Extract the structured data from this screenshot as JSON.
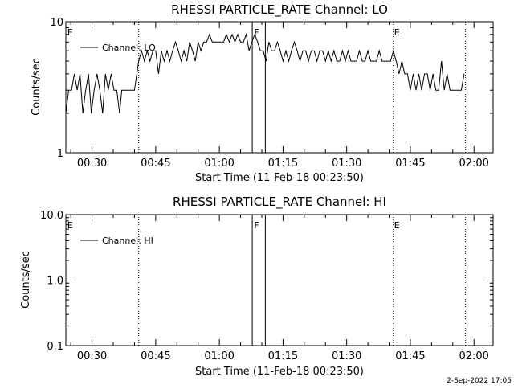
{
  "chart_data": [
    {
      "type": "line",
      "title": "RHESSI PARTICLE_RATE Channel: LO",
      "xlabel": "Start Time (11-Feb-18 00:23:50)",
      "ylabel": "Counts/sec",
      "y_scale": "log",
      "ylim": [
        1,
        10
      ],
      "y_ticks": [
        1,
        10
      ],
      "y_tick_labels": [
        "1",
        "10"
      ],
      "x_range": [
        "00:23:50",
        "02:04:30"
      ],
      "x_ticks": [
        "00:30",
        "00:45",
        "01:00",
        "01:15",
        "01:30",
        "01:45",
        "02:00"
      ],
      "legend": "top-left",
      "series": [
        {
          "name": "Channel: LO",
          "color": "#000000",
          "x": [
            "00:23:50",
            "00:24:30",
            "00:25:10",
            "00:25:50",
            "00:26:30",
            "00:27:10",
            "00:27:50",
            "00:28:30",
            "00:29:10",
            "00:29:50",
            "00:30:30",
            "00:31:10",
            "00:31:50",
            "00:32:30",
            "00:33:10",
            "00:33:50",
            "00:34:30",
            "00:35:10",
            "00:35:50",
            "00:36:30",
            "00:37:00",
            "00:40:00",
            "00:41:00",
            "00:41:40",
            "00:42:20",
            "00:43:00",
            "00:43:40",
            "00:44:20",
            "00:45:00",
            "00:45:40",
            "00:46:20",
            "00:47:00",
            "00:47:40",
            "00:48:20",
            "00:49:00",
            "00:49:40",
            "00:50:20",
            "00:51:00",
            "00:51:40",
            "00:52:20",
            "00:53:00",
            "00:53:40",
            "00:54:20",
            "00:55:00",
            "00:55:40",
            "00:56:20",
            "00:57:00",
            "00:57:40",
            "00:58:20",
            "00:59:00",
            "00:59:40",
            "01:00:20",
            "01:01:00",
            "01:01:40",
            "01:02:20",
            "01:03:00",
            "01:03:40",
            "01:04:20",
            "01:05:00",
            "01:05:40",
            "01:06:20",
            "01:07:00",
            "01:07:40",
            "01:08:20",
            "01:09:00",
            "01:09:40",
            "01:10:20",
            "01:11:00",
            "01:11:40",
            "01:12:20",
            "01:13:00",
            "01:13:40",
            "01:14:20",
            "01:15:00",
            "01:15:40",
            "01:16:20",
            "01:17:00",
            "01:17:40",
            "01:18:20",
            "01:19:00",
            "01:19:40",
            "01:20:20",
            "01:21:00",
            "01:21:40",
            "01:22:20",
            "01:23:00",
            "01:23:40",
            "01:24:20",
            "01:25:00",
            "01:25:40",
            "01:26:20",
            "01:27:00",
            "01:27:40",
            "01:28:20",
            "01:29:00",
            "01:29:40",
            "01:30:20",
            "01:31:00",
            "01:31:40",
            "01:32:20",
            "01:33:00",
            "01:33:40",
            "01:34:20",
            "01:35:00",
            "01:35:40",
            "01:36:20",
            "01:37:00",
            "01:37:40",
            "01:38:20",
            "01:39:00",
            "01:39:40",
            "01:40:20",
            "01:41:00",
            "01:41:40",
            "01:42:20",
            "01:43:00",
            "01:43:40",
            "01:44:20",
            "01:45:00",
            "01:45:40",
            "01:46:20",
            "01:47:00",
            "01:47:40",
            "01:48:20",
            "01:49:00",
            "01:49:40",
            "01:50:20",
            "01:51:00",
            "01:51:40",
            "01:52:20",
            "01:53:00",
            "01:53:40",
            "01:54:20",
            "01:55:00",
            "01:55:40",
            "01:56:20",
            "01:57:00",
            "01:57:40"
          ],
          "values": [
            2,
            3,
            3,
            4,
            3,
            4,
            2,
            3,
            4,
            2,
            3,
            4,
            3,
            2,
            4,
            3,
            4,
            3,
            3,
            2,
            3,
            3,
            5,
            6,
            5,
            6,
            5,
            6,
            6,
            4,
            6,
            5,
            6,
            5,
            6,
            7,
            6,
            5,
            6,
            5,
            7,
            6,
            5,
            7,
            6,
            7,
            7,
            8,
            7,
            7,
            7,
            7,
            7,
            8,
            7,
            8,
            7,
            8,
            7,
            7,
            8,
            6,
            7,
            8,
            7,
            6,
            6,
            5,
            7,
            6,
            6,
            7,
            6,
            5,
            6,
            5,
            6,
            7,
            6,
            5,
            6,
            6,
            5,
            6,
            6,
            5,
            6,
            6,
            5,
            6,
            5,
            6,
            5,
            5,
            6,
            5,
            6,
            5,
            5,
            5,
            6,
            5,
            5,
            6,
            5,
            5,
            5,
            6,
            5,
            5,
            5,
            5,
            6,
            5,
            4,
            5,
            4,
            4,
            3,
            4,
            3,
            4,
            3,
            4,
            4,
            3,
            4,
            3,
            3,
            5,
            3,
            4,
            3,
            3,
            3,
            3,
            3,
            4
          ]
        }
      ],
      "markers": [
        {
          "time": "00:24:00",
          "label": "E",
          "style": "none"
        },
        {
          "time": "00:41:00",
          "label": "",
          "style": "dotted"
        },
        {
          "time": "01:07:45",
          "label": "",
          "style": "solid"
        },
        {
          "time": "01:08:00",
          "label": "F",
          "style": "none"
        },
        {
          "time": "01:10:50",
          "label": "",
          "style": "solid"
        },
        {
          "time": "01:41:00",
          "label": "E",
          "style": "dotted"
        },
        {
          "time": "01:58:00",
          "label": "",
          "style": "dotted"
        }
      ]
    },
    {
      "type": "line",
      "title": "RHESSI PARTICLE_RATE Channel: HI",
      "xlabel": "Start Time (11-Feb-18 00:23:50)",
      "ylabel": "Counts/sec",
      "y_scale": "log",
      "ylim": [
        0.1,
        10
      ],
      "y_ticks": [
        0.1,
        1,
        10
      ],
      "y_tick_labels": [
        "0.1",
        "1.0",
        "10.0"
      ],
      "x_range": [
        "00:23:50",
        "02:04:30"
      ],
      "x_ticks": [
        "00:30",
        "00:45",
        "01:00",
        "01:15",
        "01:30",
        "01:45",
        "02:00"
      ],
      "legend": "top-left",
      "series": [
        {
          "name": "Channel: HI",
          "color": "#000000",
          "x": [],
          "values": []
        }
      ],
      "markers": [
        {
          "time": "00:24:00",
          "label": "E",
          "style": "none"
        },
        {
          "time": "00:41:00",
          "label": "",
          "style": "dotted"
        },
        {
          "time": "01:07:45",
          "label": "",
          "style": "solid"
        },
        {
          "time": "01:08:00",
          "label": "F",
          "style": "none"
        },
        {
          "time": "01:10:50",
          "label": "",
          "style": "solid"
        },
        {
          "time": "01:41:00",
          "label": "E",
          "style": "dotted"
        },
        {
          "time": "01:58:00",
          "label": "",
          "style": "dotted"
        }
      ]
    }
  ],
  "footer": {
    "date_stamp": "2-Sep-2022 17:05"
  }
}
